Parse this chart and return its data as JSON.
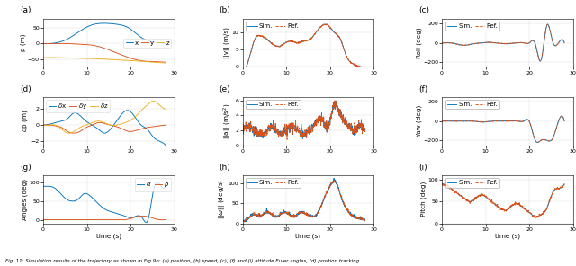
{
  "figsize": [
    6.4,
    2.96
  ],
  "dpi": 100,
  "panel_labels": [
    "(a)",
    "(b)",
    "(c)",
    "(d)",
    "(e)",
    "(f)",
    "(g)",
    "(h)",
    "(i)"
  ],
  "sim_color": "#0072BD",
  "ref_color": "#D95319",
  "blue_c": "#0072BD",
  "orange_c": "#D95319",
  "yellow_c": "#EDB120",
  "legend_fontsize": 5.0,
  "tick_fontsize": 4.5,
  "label_fontsize": 5.2,
  "panel_label_fontsize": 6.5,
  "caption": "Fig. 11: Simulation results of the trajectory as shown in Fig.9b: (a) position, (b) speed, (c), (f) and (i) attitude Euler angles, (d) position tracking"
}
